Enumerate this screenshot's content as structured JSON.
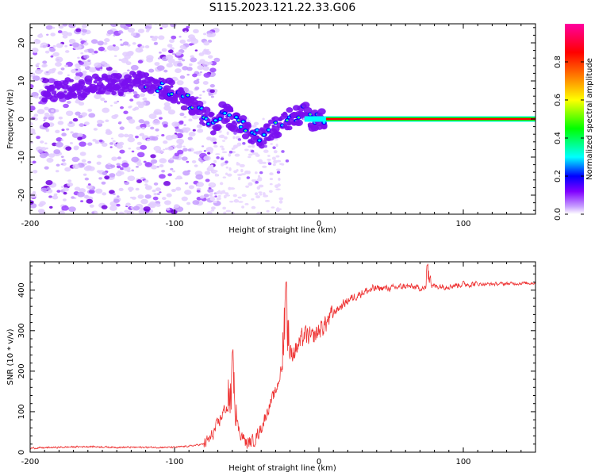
{
  "title": "S115.2023.121.22.33.G06",
  "chart_data": [
    {
      "type": "heatmap",
      "xlabel": "Height of straight line (km)",
      "ylabel": "Frequency (Hz)",
      "xlim": [
        -200,
        150
      ],
      "ylim": [
        -25,
        25
      ],
      "xticks": [
        -200,
        -100,
        0,
        100
      ],
      "yticks": [
        20,
        10,
        0,
        -10,
        -20
      ],
      "colorbar": {
        "label": "Normalized spectral amplitude",
        "range": [
          0,
          1
        ],
        "ticks": [
          "0.0",
          "0.2",
          "0.4",
          "0.6",
          "0.8"
        ],
        "colors": [
          "#ffffff",
          "#c8a0ff",
          "#8000ff",
          "#0000ff",
          "#00ffff",
          "#00ff00",
          "#ffff00",
          "#ff8000",
          "#ff0000",
          "#ff00a0"
        ]
      },
      "ridge": {
        "x": [
          -185,
          -175,
          -165,
          -155,
          -145,
          -135,
          -125,
          -115,
          -105,
          -95,
          -85,
          -78,
          -72,
          -66,
          -60,
          -55,
          -50,
          -45,
          -40,
          -35,
          -30,
          -25,
          -20,
          -15,
          -10,
          -5,
          0,
          10,
          50,
          100,
          150
        ],
        "y": [
          7,
          8,
          8,
          9,
          9,
          9,
          10,
          9,
          8,
          6,
          3,
          0,
          -2,
          2,
          0,
          -1,
          -3,
          -4,
          -5,
          -3,
          -2,
          -1,
          0,
          1,
          2,
          0,
          0,
          0,
          0,
          0,
          0
        ]
      }
    },
    {
      "type": "line",
      "xlabel": "Height of straight line (km)",
      "ylabel": "SNR (10 * v/v)",
      "xlim": [
        -200,
        150
      ],
      "ylim": [
        0,
        470
      ],
      "xticks": [
        -200,
        -100,
        0,
        100
      ],
      "yticks": [
        0,
        100,
        200,
        300,
        400
      ],
      "color": "#ee3333",
      "envelope": {
        "x": [
          -200,
          -180,
          -160,
          -140,
          -120,
          -100,
          -90,
          -80,
          -75,
          -70,
          -65,
          -60,
          -55,
          -50,
          -45,
          -40,
          -35,
          -30,
          -25,
          -20,
          -15,
          -10,
          -5,
          0,
          5,
          10,
          20,
          30,
          40,
          50,
          60,
          70,
          80,
          90,
          100,
          120,
          150
        ],
        "y": [
          10,
          12,
          14,
          12,
          12,
          12,
          15,
          20,
          35,
          70,
          110,
          100,
          50,
          20,
          30,
          60,
          110,
          150,
          220,
          240,
          260,
          290,
          280,
          300,
          320,
          345,
          375,
          395,
          405,
          405,
          410,
          405,
          410,
          410,
          415,
          415,
          418
        ]
      },
      "spikes": [
        {
          "x": -60,
          "y": 258
        },
        {
          "x": -23,
          "y": 428
        },
        {
          "x": 75,
          "y": 470
        }
      ]
    }
  ]
}
